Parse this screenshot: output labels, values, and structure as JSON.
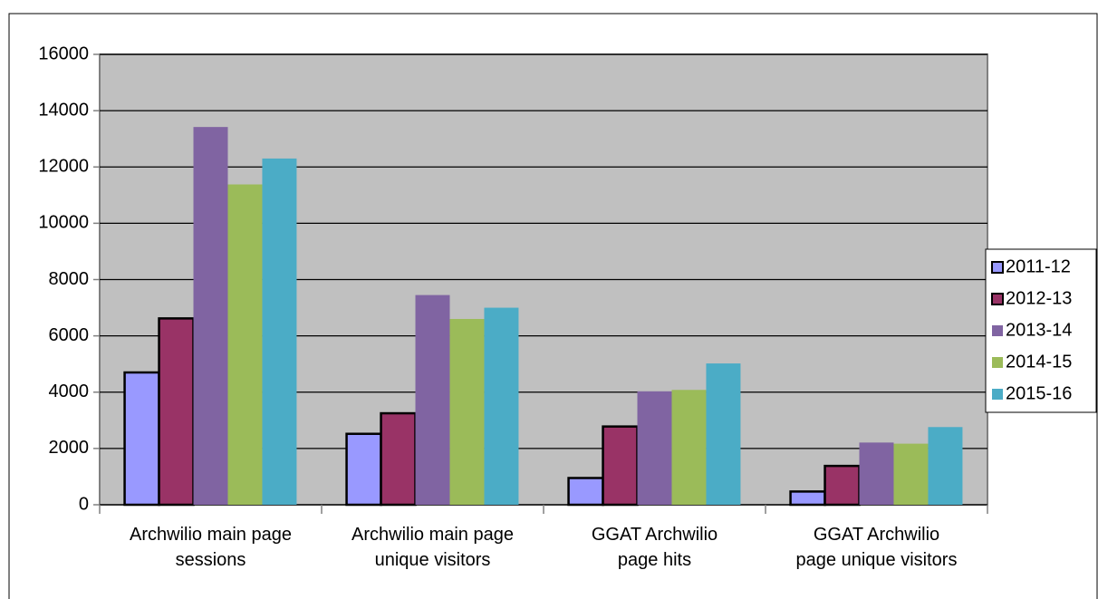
{
  "chart_data": {
    "type": "bar",
    "categories": [
      "Archwilio main page\nsessions",
      "Archwilio main page\nunique visitors",
      "GGAT Archwilio\npage hits",
      "GGAT Archwilio\npage unique visitors"
    ],
    "series": [
      {
        "name": "2011-12",
        "color": "#9999ff",
        "edgecolor": "#000000",
        "values": [
          4700,
          2520,
          950,
          470
        ]
      },
      {
        "name": "2012-13",
        "color": "#993366",
        "edgecolor": "#000000",
        "values": [
          6620,
          3250,
          2780,
          1380
        ]
      },
      {
        "name": "2013-14",
        "color": "#8064a2",
        "values": [
          13420,
          7450,
          4030,
          2210
        ]
      },
      {
        "name": "2014-15",
        "color": "#9bbb59",
        "values": [
          11380,
          6600,
          4080,
          2170
        ]
      },
      {
        "name": "2015-16",
        "color": "#4bacc6",
        "values": [
          12300,
          7000,
          5020,
          2760
        ]
      }
    ],
    "ylim": [
      0,
      16000
    ],
    "yticks": [
      0,
      2000,
      4000,
      6000,
      8000,
      10000,
      12000,
      14000,
      16000
    ],
    "grid": true,
    "legend": "right"
  }
}
